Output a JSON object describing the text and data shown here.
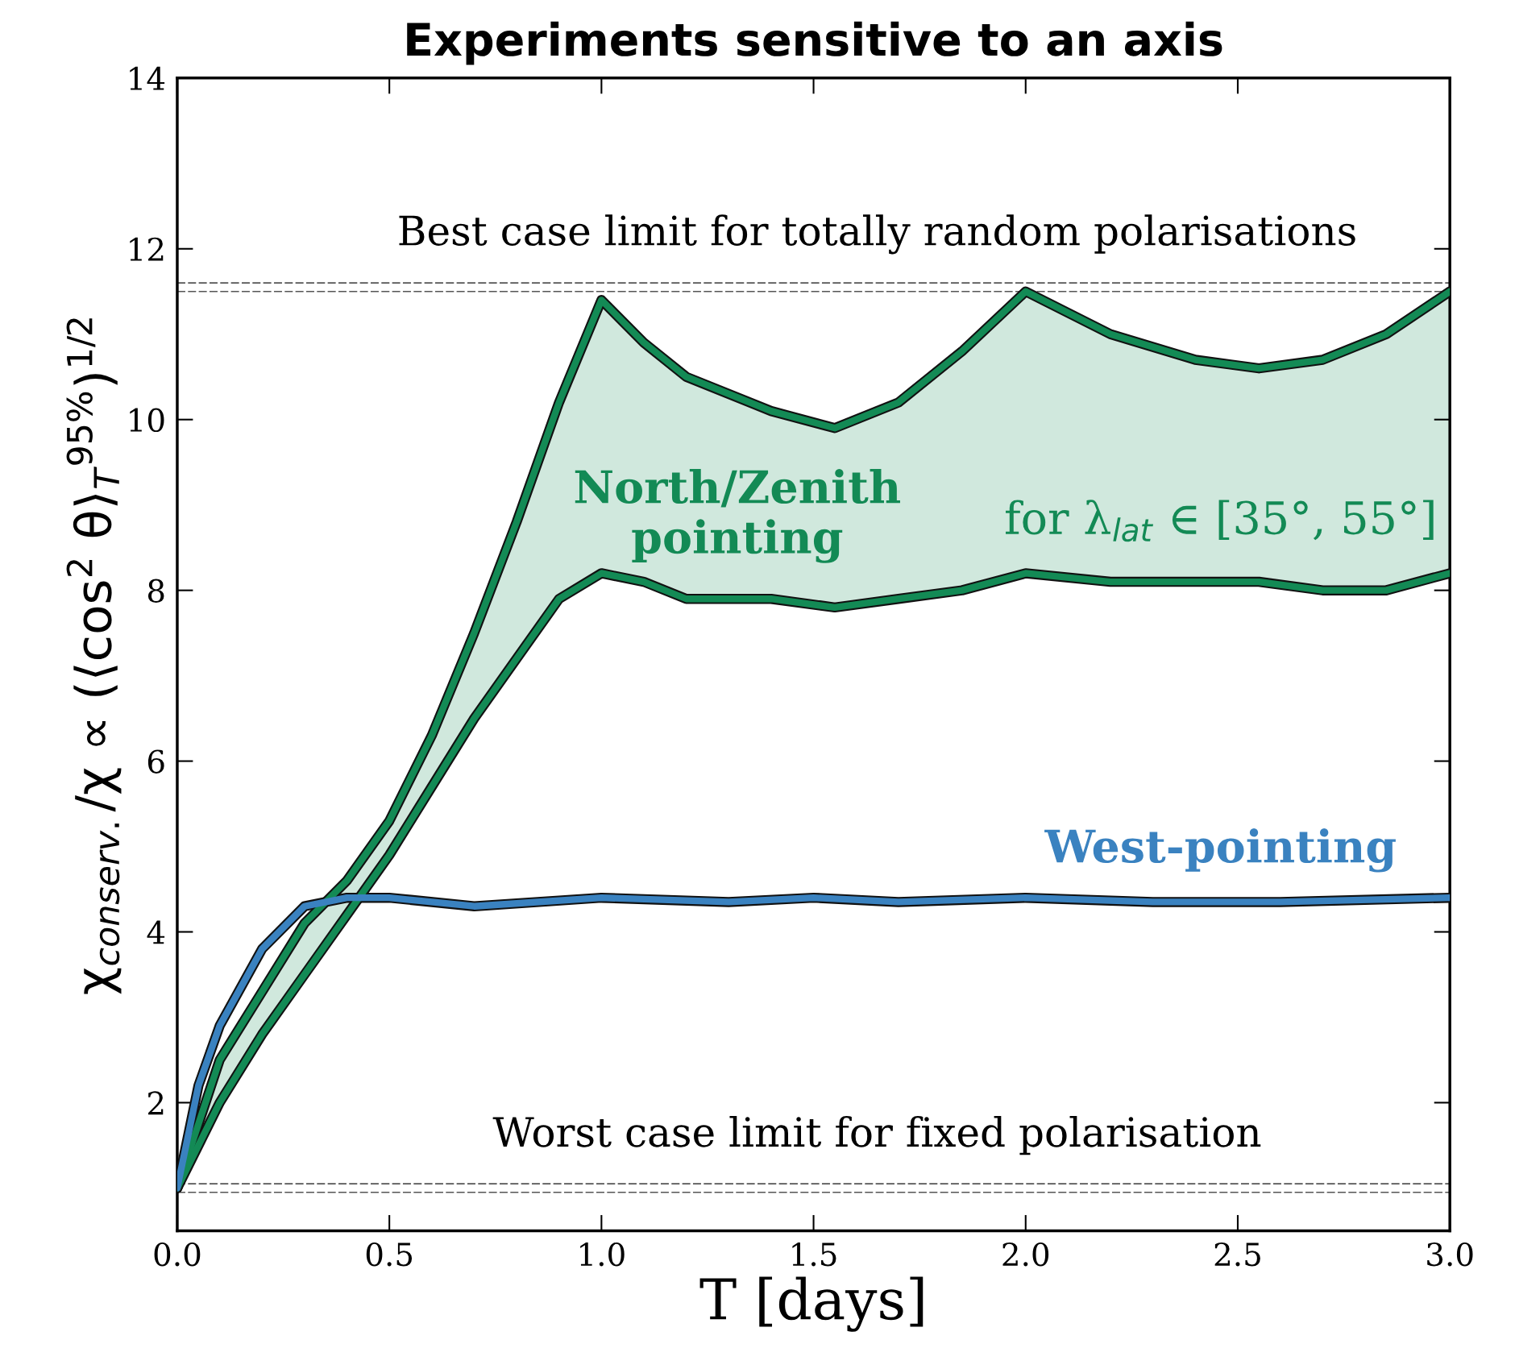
{
  "chart_data": {
    "type": "line",
    "title": "Experiments sensitive to an axis",
    "xlabel": "T [days]",
    "ylabel": "χ$_{conserv.}$/χ ∝ (⟨cos$^{2}$ θ⟩$_{T}$$^{95%}$)$^{1/2}$",
    "xlim": [
      0,
      3
    ],
    "ylim": [
      0.5,
      14
    ],
    "xticks": [
      {
        "value": 0,
        "label": "0.0"
      },
      0.5,
      {
        "value": 1,
        "label": "1.0"
      },
      1.5,
      {
        "value": 2,
        "label": "2.0"
      },
      2.5,
      {
        "value": 3,
        "label": "3.0"
      }
    ],
    "yticks": [
      2,
      4,
      6,
      8,
      10,
      12,
      14
    ],
    "grid": false,
    "legend": false,
    "line_style": "solid",
    "marker": "none",
    "series": [
      {
        "color": "#138a55",
        "x": [
          0,
          0.1,
          0.2,
          0.3,
          0.4,
          0.5,
          0.6,
          0.7,
          0.8,
          0.9,
          1.0,
          1.1,
          1.2,
          1.4,
          1.55,
          1.7,
          1.85,
          2.0,
          2.2,
          2.4,
          2.55,
          2.7,
          2.85,
          3.0
        ],
        "values": [
          1,
          2.5,
          3.3,
          4.1,
          4.6,
          5.3,
          6.3,
          7.5,
          8.8,
          10.2,
          11.4,
          10.9,
          10.5,
          10.1,
          9.9,
          10.2,
          10.8,
          11.5,
          11.0,
          10.7,
          10.6,
          10.7,
          11.0,
          11.5
        ]
      },
      {
        "color": "#138a55",
        "x": [
          0,
          0.1,
          0.2,
          0.3,
          0.4,
          0.5,
          0.6,
          0.7,
          0.8,
          0.9,
          1.0,
          1.1,
          1.2,
          1.4,
          1.55,
          1.7,
          1.85,
          2.0,
          2.2,
          2.4,
          2.55,
          2.7,
          2.85,
          3.0
        ],
        "values": [
          1,
          2.0,
          2.8,
          3.5,
          4.2,
          4.9,
          5.7,
          6.5,
          7.2,
          7.9,
          8.2,
          8.1,
          7.9,
          7.9,
          7.8,
          7.9,
          8.0,
          8.2,
          8.1,
          8.1,
          8.1,
          8.0,
          8.0,
          8.2
        ],
        "lower": [
          1,
          2.0,
          2.8,
          3.5,
          4.2,
          4.9,
          5.7,
          6.5,
          7.2,
          7.9,
          8.2,
          8.1,
          7.9,
          7.9,
          7.8,
          7.9,
          8.0,
          8.2,
          8.1,
          8.1,
          8.1,
          8.0,
          8.0,
          8.2
        ],
        "upper": [
          1,
          2.5,
          3.3,
          4.1,
          4.6,
          5.3,
          6.3,
          7.5,
          8.8,
          10.2,
          11.4,
          10.9,
          10.5,
          10.1,
          9.9,
          10.2,
          10.8,
          11.5,
          11.0,
          10.7,
          10.6,
          10.7,
          11.0,
          11.5
        ]
      },
      {
        "color": "#3a82c0",
        "x": [
          0,
          0.05,
          0.1,
          0.2,
          0.3,
          0.4,
          0.5,
          0.7,
          1.0,
          1.3,
          1.5,
          1.7,
          2.0,
          2.3,
          2.6,
          3.0
        ],
        "values": [
          1,
          2.2,
          2.9,
          3.8,
          4.3,
          4.4,
          4.4,
          4.3,
          4.4,
          4.35,
          4.4,
          4.35,
          4.4,
          4.35,
          4.35,
          4.4
        ]
      }
    ],
    "ref_lines": [
      {
        "axis": "y",
        "value": 11.6,
        "label": "Best case limit for totally random polarisations",
        "color": "#555555",
        "line_style": "dashed"
      },
      {
        "axis": "y",
        "value": 11.5,
        "color": "#555555",
        "line_style": "dashed"
      },
      {
        "axis": "y",
        "value": 1.05,
        "label": "Worst case limit for fixed polarisation",
        "color": "#555555",
        "line_style": "dashed"
      },
      {
        "axis": "y",
        "value": 0.95,
        "color": "#555555",
        "line_style": "dashed"
      }
    ],
    "annotations": [
      "North/Zenith\npointing",
      "for λ$_{lat}$ ∈ [35°, 55°]",
      "West-pointing"
    ]
  }
}
